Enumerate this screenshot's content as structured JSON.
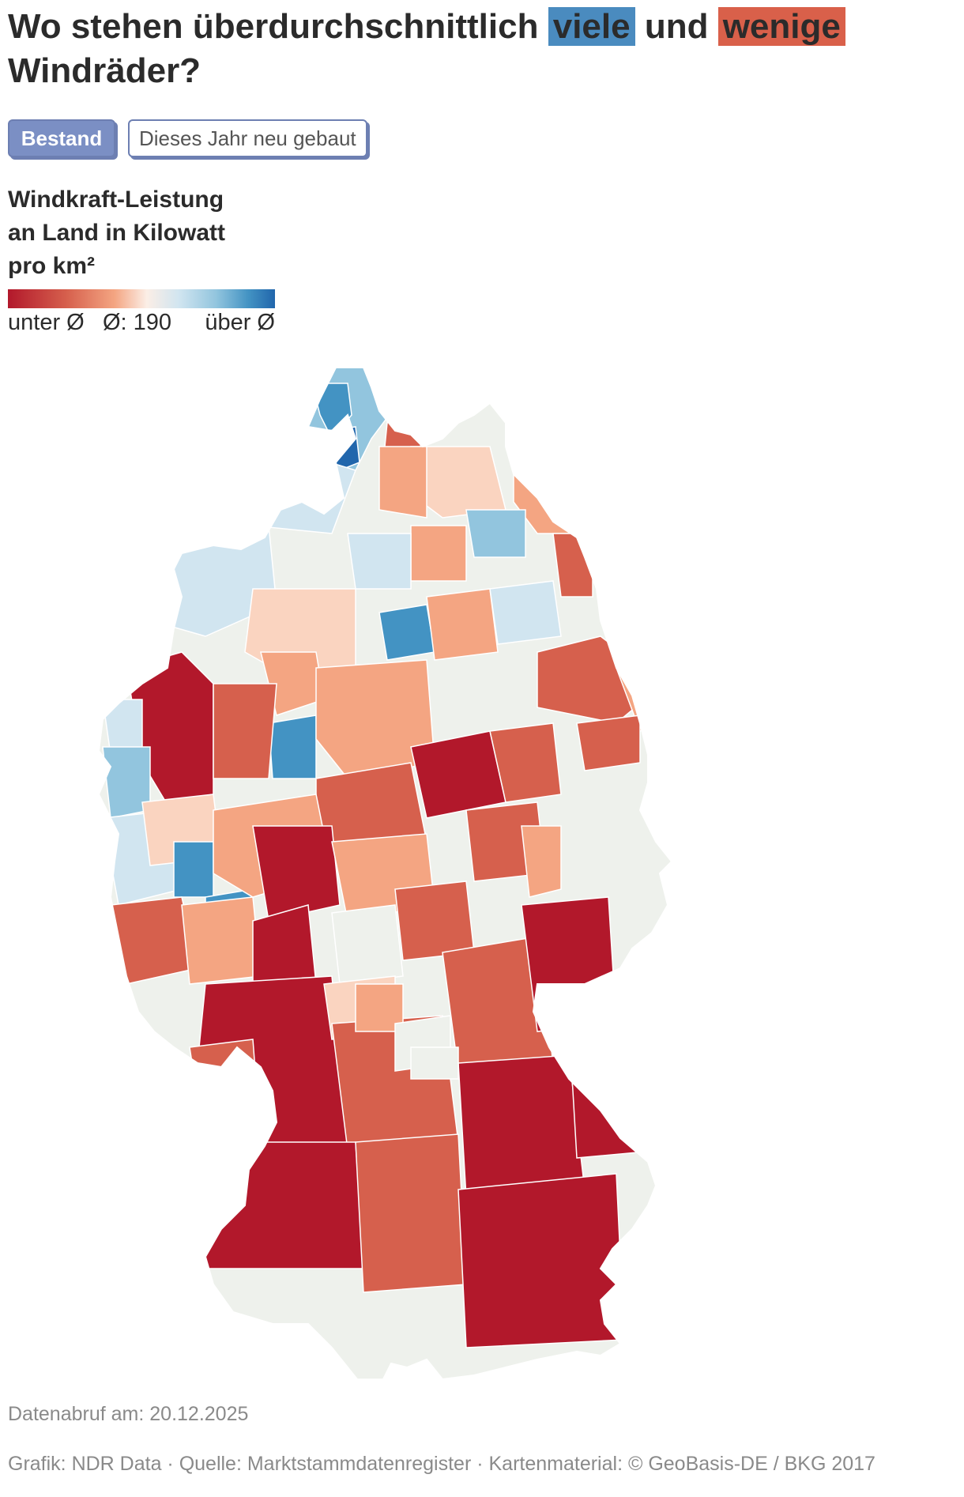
{
  "title": {
    "part1": "Wo stehen überdurchschnittlich",
    "high": "viele",
    "mid": "und",
    "low": "wenige",
    "part2": "Windräder?"
  },
  "tabs": [
    {
      "label": "Bestand",
      "active": true
    },
    {
      "label": "Dieses Jahr neu gebaut",
      "active": false
    }
  ],
  "legend": {
    "title_line1": "Windkraft-Leistung",
    "title_line2": "an Land in Kilowatt",
    "title_line3": "pro km²",
    "label_low": "unter Ø",
    "label_mid": "Ø: 190",
    "label_high": "über Ø",
    "average": 190,
    "color_low": "#b2182b",
    "color_mid": "#f7f4ee",
    "color_high": "#2166ac"
  },
  "map": {
    "region": "Deutschland",
    "unit": "Landkreise",
    "colors": {
      "dark_red": "#b2182b",
      "red": "#d6604d",
      "salmon": "#f4a582",
      "peach": "#fad4c0",
      "neutral": "#eef1ec",
      "light_blue": "#d1e5f0",
      "mid_blue": "#92c5de",
      "blue": "#4393c3",
      "dark_blue": "#2166ac"
    }
  },
  "footer": {
    "date": "Datenabruf am: 20.12.2025",
    "credits": "Grafik: NDR Data · Quelle: Marktstammdatenregister · Kartenmaterial: © GeoBasis-DE / BKG 2017"
  }
}
